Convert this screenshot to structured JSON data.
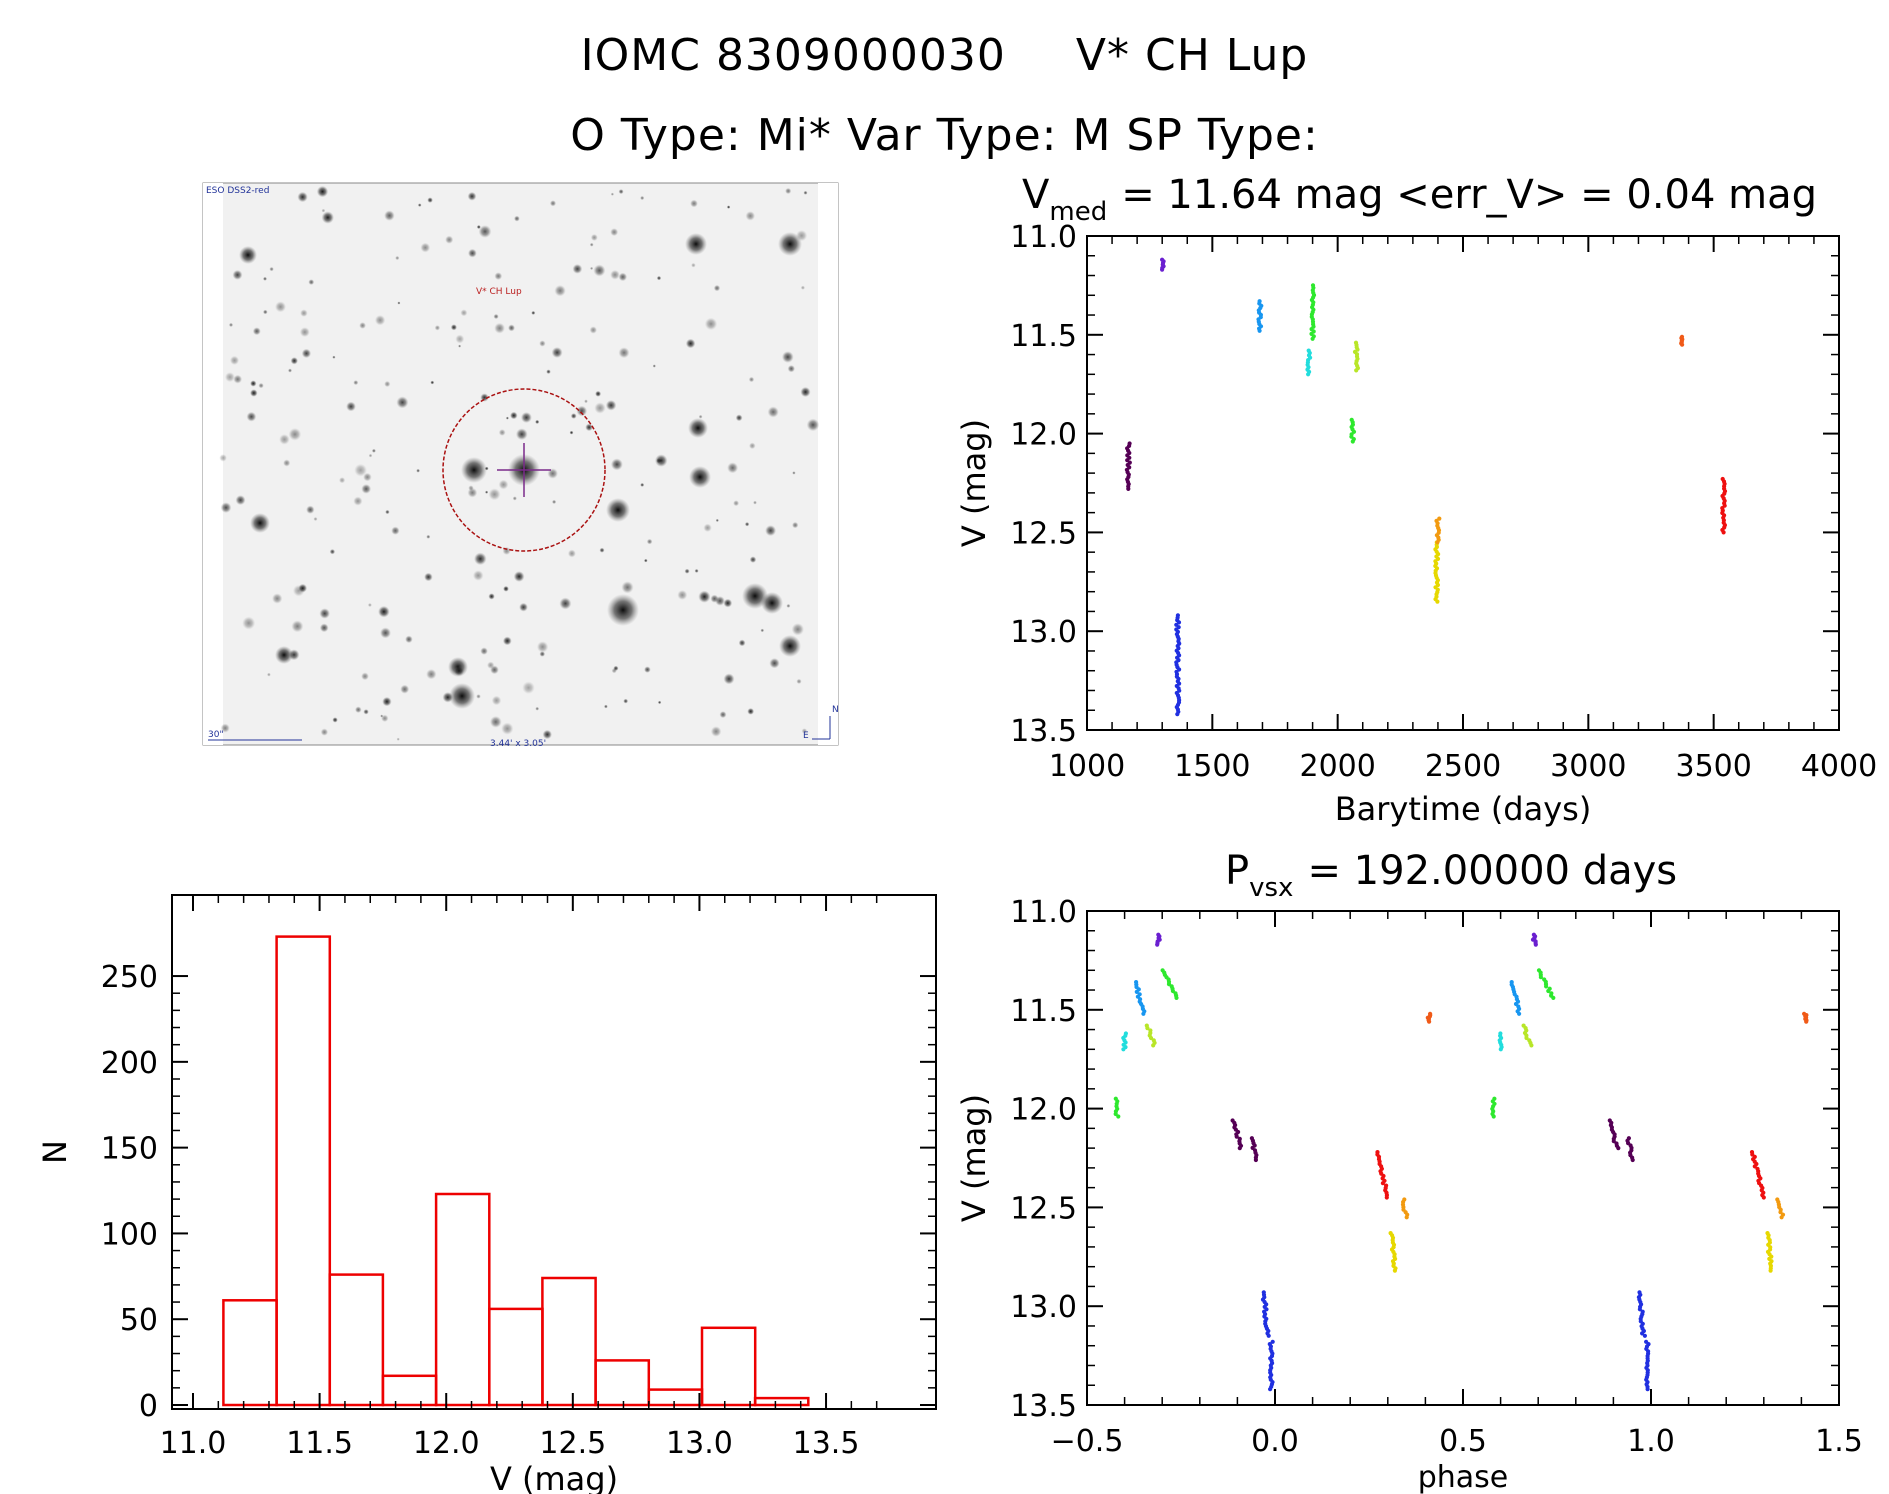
{
  "titles": {
    "line1_a": "IOMC 8309000030",
    "line1_b": "V* CH Lup",
    "line2": "O Type: Mi*  Var Type: M  SP Type:"
  },
  "image_panel": {
    "survey_label": "ESO DSS2-red",
    "target_label": "V* CH Lup",
    "scale_label": "30\"",
    "size_label": "3.44' x 3.05'",
    "north": "N",
    "east": "E"
  },
  "chart_data": [
    {
      "id": "light_curve",
      "type": "scatter",
      "title_prefix": "V",
      "title_sub": "med",
      "title_rest": "= 11.64 mag <err_V> = 0.04 mag",
      "xlabel": "Barytime (days)",
      "ylabel": "V (mag)",
      "xlim": [
        1000,
        4000
      ],
      "ylim": [
        13.5,
        11.0
      ],
      "xticks": [
        1000,
        1500,
        2000,
        2500,
        3000,
        3500,
        4000
      ],
      "yticks": [
        11.0,
        11.5,
        12.0,
        12.5,
        13.0,
        13.5
      ],
      "series": [
        {
          "color": "#550055",
          "x": 1165,
          "y": [
            12.05,
            12.28
          ]
        },
        {
          "color": "#6a1fd0",
          "x": 1305,
          "y": [
            11.12,
            11.17
          ]
        },
        {
          "color": "#2030e0",
          "x": 1362,
          "y": [
            12.92,
            13.42
          ]
        },
        {
          "color": "#1896f0",
          "x": 1690,
          "y": [
            11.33,
            11.48
          ]
        },
        {
          "color": "#22dddd",
          "x": 1885,
          "y": [
            11.58,
            11.7
          ]
        },
        {
          "color": "#2ee82e",
          "x": 1900,
          "y": [
            11.25,
            11.52
          ]
        },
        {
          "color": "#2ee82e",
          "x": 2060,
          "y": [
            11.93,
            12.04
          ]
        },
        {
          "color": "#b8e628",
          "x": 2075,
          "y": [
            11.54,
            11.68
          ]
        },
        {
          "color": "#e6d800",
          "x": 2395,
          "y": [
            12.55,
            12.85
          ]
        },
        {
          "color": "#f29a10",
          "x": 2400,
          "y": [
            12.43,
            12.55
          ]
        },
        {
          "color": "#f05a18",
          "x": 3370,
          "y": [
            11.51,
            11.55
          ]
        },
        {
          "color": "#ee1010",
          "x": 3540,
          "y": [
            12.23,
            12.5
          ]
        }
      ]
    },
    {
      "id": "phase_curve",
      "type": "scatter",
      "title_prefix": "P",
      "title_sub": "vsx",
      "title_rest": "= 192.00000 days",
      "xlabel": "phase",
      "ylabel": "V (mag)",
      "xlim": [
        -0.5,
        1.5
      ],
      "ylim": [
        13.5,
        11.0
      ],
      "xticks": [
        -0.5,
        0.0,
        0.5,
        1.0,
        1.5
      ],
      "xticklabels": [
        "-0.5",
        "0.0",
        "0.5",
        "1.0",
        "1.5"
      ],
      "yticks": [
        11.0,
        11.5,
        12.0,
        12.5,
        13.0,
        13.5
      ],
      "series": [
        {
          "color": "#22dddd",
          "x": [
            -0.4,
            -0.4
          ],
          "y": [
            11.62,
            11.7
          ]
        },
        {
          "color": "#2ee82e",
          "x": [
            -0.42,
            -0.42
          ],
          "y": [
            11.95,
            12.04
          ]
        },
        {
          "color": "#1896f0",
          "x": [
            -0.37,
            -0.35
          ],
          "y": [
            11.36,
            11.52
          ]
        },
        {
          "color": "#b8e628",
          "x": [
            -0.34,
            -0.32
          ],
          "y": [
            11.58,
            11.68
          ]
        },
        {
          "color": "#6a1fd0",
          "x": [
            -0.31,
            -0.31
          ],
          "y": [
            11.12,
            11.17
          ]
        },
        {
          "color": "#2ee82e",
          "x": [
            -0.3,
            -0.26
          ],
          "y": [
            11.3,
            11.44
          ]
        },
        {
          "color": "#550055",
          "x": [
            -0.11,
            -0.09
          ],
          "y": [
            12.06,
            12.2
          ]
        },
        {
          "color": "#550055",
          "x": [
            -0.06,
            -0.05
          ],
          "y": [
            12.15,
            12.26
          ]
        },
        {
          "color": "#2030e0",
          "x": [
            -0.03,
            -0.02
          ],
          "y": [
            12.93,
            13.15
          ]
        },
        {
          "color": "#2030e0",
          "x": [
            -0.01,
            -0.01
          ],
          "y": [
            13.18,
            13.42
          ]
        },
        {
          "color": "#ee1010",
          "x": [
            0.27,
            0.3
          ],
          "y": [
            12.22,
            12.45
          ]
        },
        {
          "color": "#e6d800",
          "x": [
            0.31,
            0.32
          ],
          "y": [
            12.63,
            12.82
          ]
        },
        {
          "color": "#f29a10",
          "x": [
            0.34,
            0.35
          ],
          "y": [
            12.46,
            12.55
          ]
        },
        {
          "color": "#f05a18",
          "x": [
            0.41,
            0.41
          ],
          "y": [
            11.52,
            11.56
          ]
        },
        {
          "color": "#22dddd",
          "x": [
            0.6,
            0.6
          ],
          "y": [
            11.62,
            11.7
          ]
        },
        {
          "color": "#2ee82e",
          "x": [
            0.58,
            0.58
          ],
          "y": [
            11.95,
            12.04
          ]
        },
        {
          "color": "#1896f0",
          "x": [
            0.63,
            0.65
          ],
          "y": [
            11.36,
            11.52
          ]
        },
        {
          "color": "#b8e628",
          "x": [
            0.66,
            0.68
          ],
          "y": [
            11.58,
            11.68
          ]
        },
        {
          "color": "#6a1fd0",
          "x": [
            0.69,
            0.69
          ],
          "y": [
            11.12,
            11.17
          ]
        },
        {
          "color": "#2ee82e",
          "x": [
            0.7,
            0.74
          ],
          "y": [
            11.3,
            11.44
          ]
        },
        {
          "color": "#550055",
          "x": [
            0.89,
            0.91
          ],
          "y": [
            12.06,
            12.2
          ]
        },
        {
          "color": "#550055",
          "x": [
            0.94,
            0.95
          ],
          "y": [
            12.15,
            12.26
          ]
        },
        {
          "color": "#2030e0",
          "x": [
            0.97,
            0.98
          ],
          "y": [
            12.93,
            13.15
          ]
        },
        {
          "color": "#2030e0",
          "x": [
            0.99,
            0.99
          ],
          "y": [
            13.18,
            13.42
          ]
        },
        {
          "color": "#ee1010",
          "x": [
            1.27,
            1.3
          ],
          "y": [
            12.22,
            12.45
          ]
        },
        {
          "color": "#e6d800",
          "x": [
            1.31,
            1.32
          ],
          "y": [
            12.63,
            12.82
          ]
        },
        {
          "color": "#f29a10",
          "x": [
            1.34,
            1.35
          ],
          "y": [
            12.46,
            12.55
          ]
        },
        {
          "color": "#f05a18",
          "x": [
            1.41,
            1.41
          ],
          "y": [
            11.52,
            11.56
          ]
        }
      ]
    },
    {
      "id": "histogram",
      "type": "bar",
      "xlabel": "V (mag)",
      "ylabel": "N",
      "xlim": [
        11.0,
        13.8
      ],
      "ylim": [
        0,
        285
      ],
      "color": "#ee0000",
      "bin_edges": [
        11.12,
        11.33,
        11.54,
        11.75,
        11.96,
        12.17,
        12.38,
        12.59,
        12.8,
        13.01,
        13.22,
        13.43
      ],
      "values": [
        61,
        273,
        76,
        17,
        123,
        56,
        74,
        26,
        9,
        45,
        4
      ],
      "xticks": [
        11.0,
        11.5,
        12.0,
        12.5,
        13.0,
        13.5
      ],
      "xticklabels": [
        "11.0",
        "11.5",
        "12.0",
        "12.5",
        "13.0",
        "13.5"
      ],
      "yticks": [
        0,
        50,
        100,
        150,
        200,
        250
      ]
    }
  ]
}
